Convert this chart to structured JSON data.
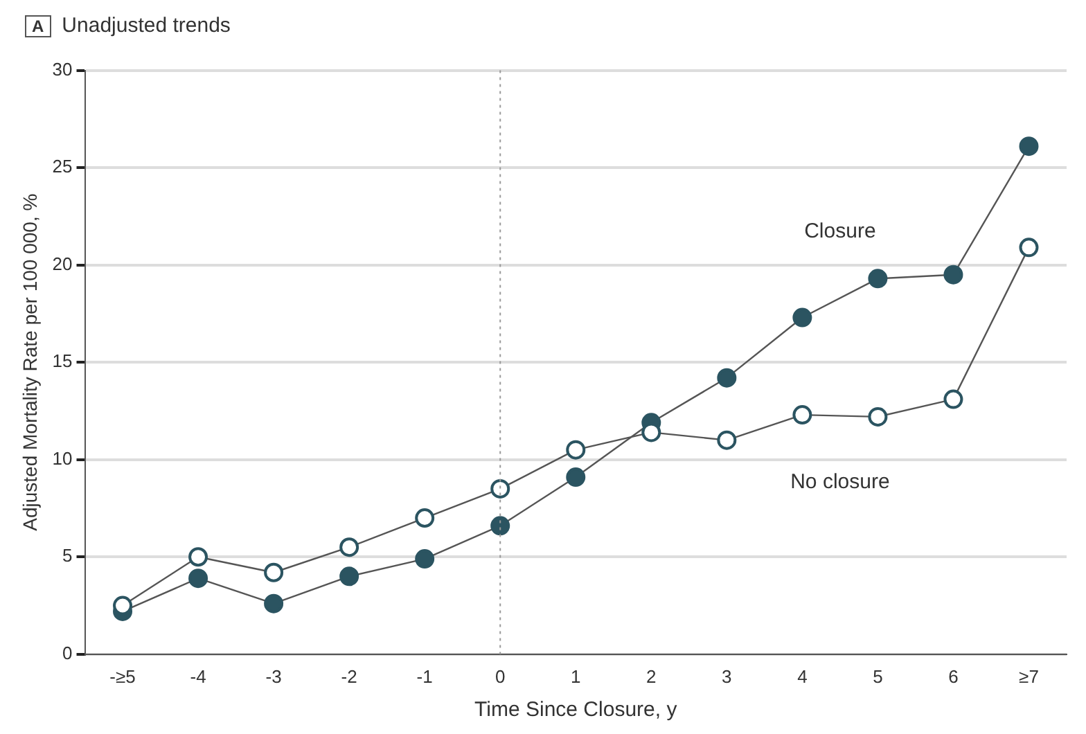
{
  "chart_data": {
    "type": "line",
    "title": "Unadjusted trends",
    "annotations": [
      "A"
    ],
    "xlabel": "Time Since Closure, y",
    "ylabel": "Adjusted Mortality Rate per 100 000, %",
    "categories": [
      "-≥5",
      "-4",
      "-3",
      "-2",
      "-1",
      "0",
      "1",
      "2",
      "3",
      "4",
      "5",
      "6",
      "≥7"
    ],
    "series": [
      {
        "name": "Closure",
        "color": "#2b5461",
        "marker": "circle",
        "values": [
          2.2,
          3.9,
          2.6,
          4.0,
          4.9,
          6.6,
          9.1,
          11.9,
          14.2,
          17.3,
          19.3,
          19.5,
          26.1
        ]
      },
      {
        "name": "No closure",
        "color": "#2b5461",
        "marker": "open circle",
        "values": [
          2.5,
          5.0,
          4.2,
          5.5,
          7.0,
          8.5,
          10.5,
          11.4,
          11.0,
          12.3,
          12.2,
          13.1,
          20.9
        ]
      }
    ],
    "ylim": [
      0,
      30
    ],
    "yticks": [
      0,
      5,
      10,
      15,
      20,
      25,
      30
    ],
    "grid": "y",
    "legend": false,
    "ref_lines": [
      {
        "axis": "x",
        "value": "0",
        "line_style": "dotted",
        "color": "#999999"
      }
    ]
  }
}
